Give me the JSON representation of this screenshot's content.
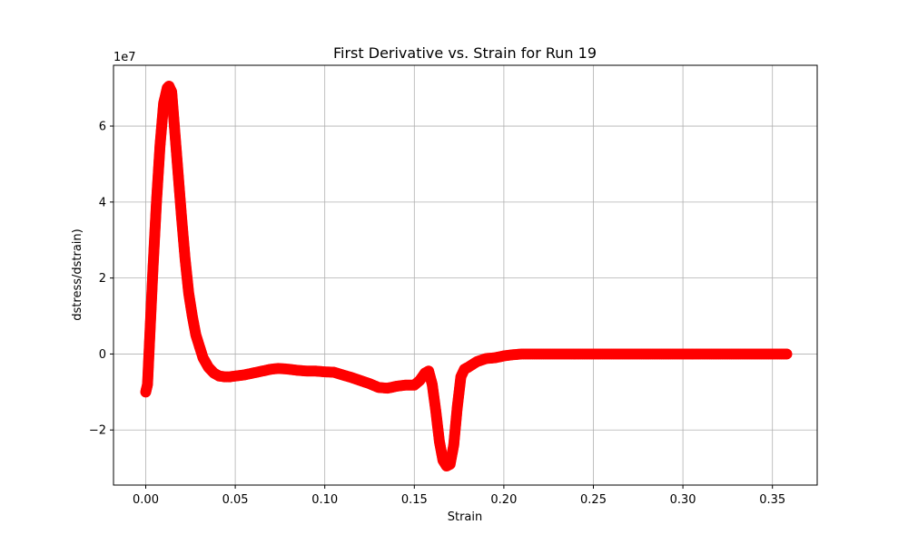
{
  "chart_data": {
    "type": "scatter",
    "title": "First Derivative vs. Strain for Run 19",
    "xlabel": "Strain",
    "ylabel": "dstress/dstrain)",
    "y_offset_text": "1e7",
    "xlim": [
      -0.018,
      0.375
    ],
    "ylim": [
      -34500000.0,
      76000000.0
    ],
    "x_ticks": [
      0.0,
      0.05,
      0.1,
      0.15,
      0.2,
      0.25,
      0.3,
      0.35
    ],
    "x_tick_labels": [
      "0.00",
      "0.05",
      "0.10",
      "0.15",
      "0.20",
      "0.25",
      "0.30",
      "0.35"
    ],
    "y_ticks": [
      -20000000.0,
      0,
      20000000.0,
      40000000.0,
      60000000.0
    ],
    "y_tick_labels": [
      "−2",
      "0",
      "2",
      "4",
      "6"
    ],
    "grid": true,
    "series_color": "#ff0000",
    "series": [
      {
        "x": [
          0.0,
          0.001,
          0.002,
          0.004,
          0.006,
          0.008,
          0.01,
          0.012,
          0.013,
          0.0145,
          0.016,
          0.018,
          0.02,
          0.022,
          0.024,
          0.026,
          0.028,
          0.03,
          0.032,
          0.035,
          0.038,
          0.041,
          0.044,
          0.047,
          0.05,
          0.055,
          0.06,
          0.065,
          0.07,
          0.074,
          0.08,
          0.085,
          0.09,
          0.095,
          0.1,
          0.105,
          0.11,
          0.115,
          0.12,
          0.125,
          0.13,
          0.135,
          0.14,
          0.145,
          0.15,
          0.153,
          0.156,
          0.158,
          0.16,
          0.162,
          0.164,
          0.166,
          0.168,
          0.17,
          0.172,
          0.174,
          0.176,
          0.178,
          0.18,
          0.185,
          0.19,
          0.195,
          0.2,
          0.205,
          0.21,
          0.22,
          0.23,
          0.24,
          0.25,
          0.26,
          0.27,
          0.28,
          0.29,
          0.3,
          0.31,
          0.32,
          0.33,
          0.34,
          0.35,
          0.358
        ],
        "y": [
          -10000000.0,
          -8000000.0,
          2000000.0,
          22000000.0,
          40000000.0,
          55000000.0,
          66000000.0,
          70000000.0,
          70500000.0,
          69000000.0,
          60000000.0,
          48000000.0,
          36000000.0,
          25000000.0,
          16000000.0,
          10000000.0,
          5000000.0,
          2000000.0,
          -1000000.0,
          -3500000.0,
          -5000000.0,
          -5800000.0,
          -6000000.0,
          -6000000.0,
          -5800000.0,
          -5500000.0,
          -5000000.0,
          -4500000.0,
          -4000000.0,
          -3800000.0,
          -4000000.0,
          -4300000.0,
          -4500000.0,
          -4500000.0,
          -4700000.0,
          -4800000.0,
          -5500000.0,
          -6200000.0,
          -7000000.0,
          -7800000.0,
          -8800000.0,
          -9000000.0,
          -8500000.0,
          -8200000.0,
          -8200000.0,
          -7000000.0,
          -5000000.0,
          -4500000.0,
          -8000000.0,
          -15000000.0,
          -23000000.0,
          -28000000.0,
          -29500000.0,
          -29000000.0,
          -24000000.0,
          -14000000.0,
          -6000000.0,
          -4000000.0,
          -3500000.0,
          -2000000.0,
          -1200000.0,
          -1000000.0,
          -500000.0,
          -200000.0,
          0.0,
          0.0,
          0.0,
          0.0,
          0.0,
          0.0,
          0.0,
          0.0,
          0.0,
          0.0,
          0.0,
          0.0,
          0.0,
          0.0,
          0.0,
          0.0
        ]
      }
    ]
  }
}
